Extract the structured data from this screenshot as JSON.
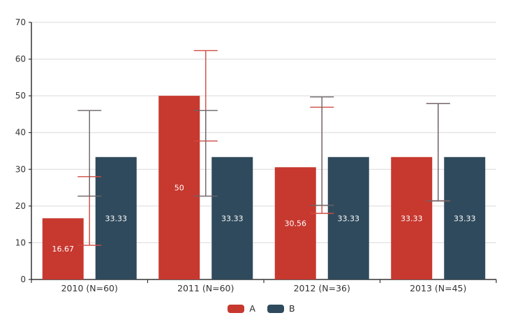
{
  "chart_data": {
    "type": "bar",
    "title": "",
    "xlabel": "",
    "ylabel": "",
    "categories": [
      "2010 (N=60)",
      "2011 (N=60)",
      "2012 (N=36)",
      "2013 (N=45)"
    ],
    "sample_sizes": [
      60,
      60,
      36,
      45
    ],
    "series": [
      {
        "name": "A",
        "color": "#c7382f",
        "values": [
          16.67,
          50,
          30.56,
          33.33
        ],
        "labels": [
          "16.67",
          "50",
          "30.56",
          "33.33"
        ],
        "error_bars": {
          "color": "#cf4a42",
          "low": [
            9.3,
            37.7,
            18.0,
            21.4
          ],
          "high": [
            28.0,
            62.3,
            46.9,
            47.9
          ]
        }
      },
      {
        "name": "B",
        "color": "#2f4a5c",
        "values": [
          33.33,
          33.33,
          33.33,
          33.33
        ],
        "labels": [
          "33.33",
          "33.33",
          "33.33",
          "33.33"
        ],
        "error_bars": {
          "color": "#6b6368",
          "low": [
            22.7,
            22.7,
            20.2,
            21.4
          ],
          "high": [
            46.0,
            46.0,
            49.7,
            47.9
          ]
        }
      }
    ],
    "ylim": [
      0,
      70
    ],
    "yticks": [
      0,
      10,
      20,
      30,
      40,
      50,
      60,
      70
    ],
    "grid": "horizontal",
    "legend_position": "bottom",
    "colors": {
      "background": "#ffffff",
      "axis": "#333333",
      "grid": "#d9d9d9",
      "tick_label": "#333333",
      "bar_label": "#ffffff"
    }
  }
}
